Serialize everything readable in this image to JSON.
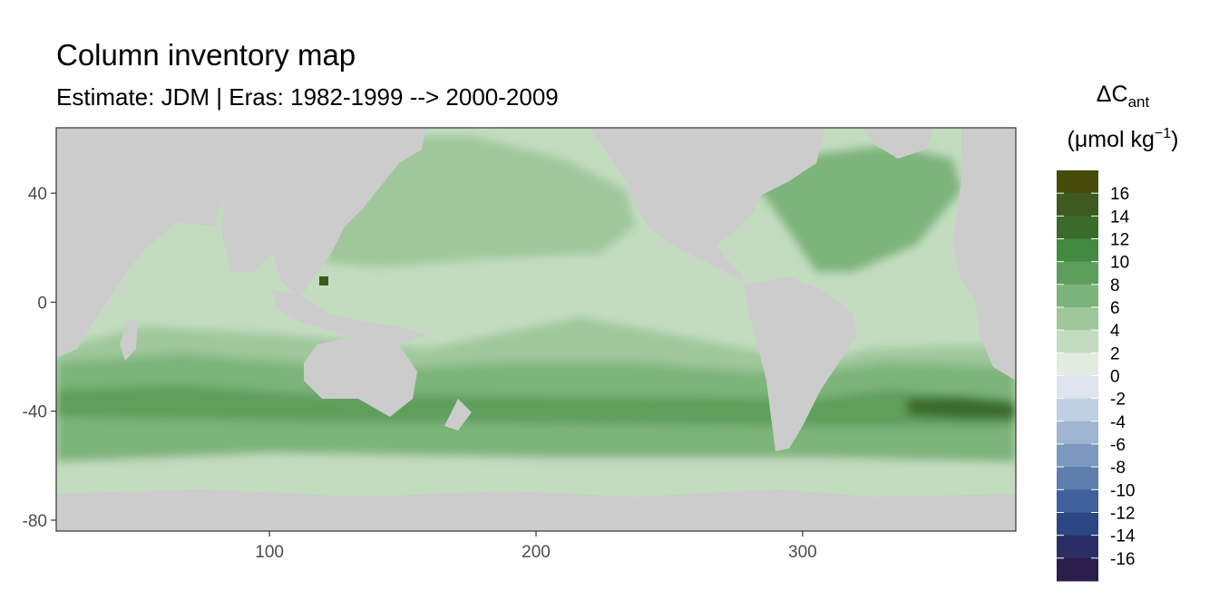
{
  "title": "Column inventory map",
  "subtitle": "Estimate: JDM  | Eras: 1982-1999 --> 2000-2009",
  "chart_data": {
    "type": "heatmap",
    "x_ticks": [
      100,
      200,
      300
    ],
    "y_ticks": [
      40,
      0,
      -40,
      -80
    ],
    "x_range": [
      20,
      380
    ],
    "y_range": [
      -84,
      64
    ],
    "legend": {
      "title_main": "ΔC",
      "title_sub": "ant",
      "unit_prefix": "(μmol kg",
      "unit_sup": "−1",
      "unit_suffix": ")",
      "labels": [
        "16",
        "14",
        "12",
        "10",
        "8",
        "6",
        "4",
        "2",
        "0",
        "-2",
        "-4",
        "-6",
        "-8",
        "-10",
        "-12",
        "-14",
        "-16"
      ],
      "colors": [
        "#474c0b",
        "#3f5a1f",
        "#3b6b2a",
        "#428a42",
        "#5e9e5c",
        "#7db47a",
        "#9fc79b",
        "#c3dcc0",
        "#e2ece0",
        "#dfe5ef",
        "#c0cfe1",
        "#9eb4d0",
        "#7d99bf",
        "#5e7fae",
        "#3e619b",
        "#2b4682",
        "#2a2e63",
        "#2b1d4e"
      ]
    },
    "map_colors": {
      "land": "#cccccc",
      "missing": "#ffffff"
    }
  }
}
